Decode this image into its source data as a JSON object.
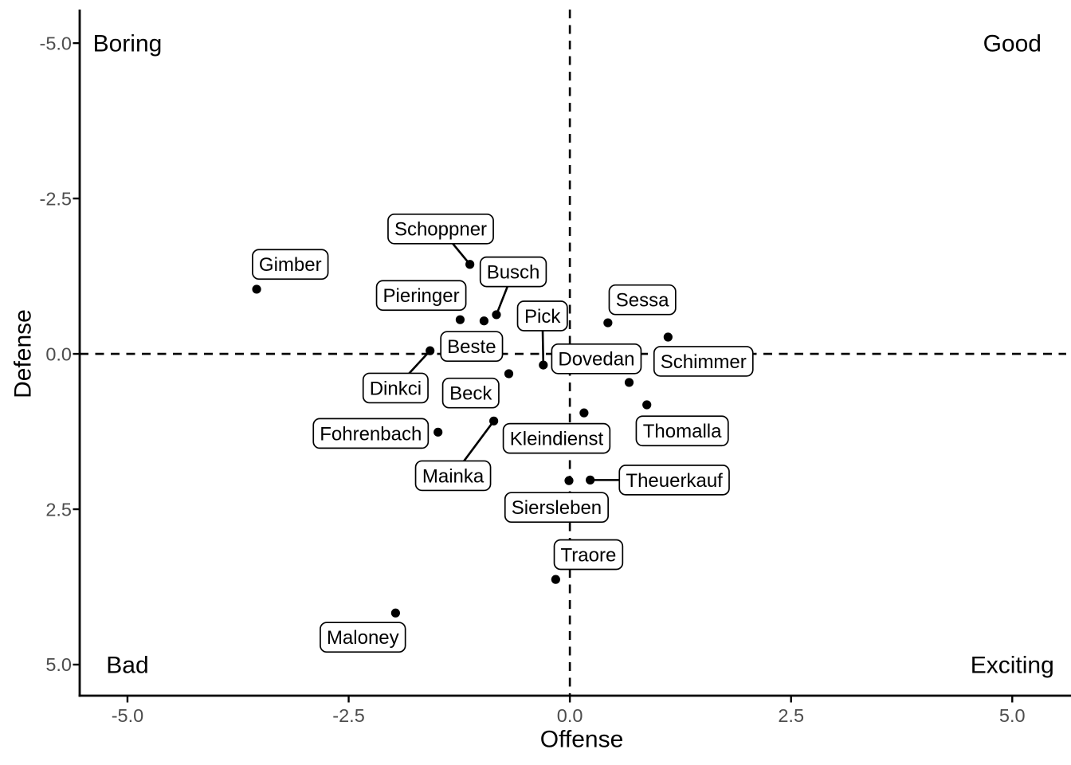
{
  "chart_data": {
    "type": "scatter",
    "title": "",
    "xlabel": "Offense",
    "ylabel": "Defense",
    "xlim": [
      -5.54,
      5.61
    ],
    "ylim_top_to_bottom": [
      -5.54,
      5.5
    ],
    "y_axis_reversed": true,
    "grid": false,
    "x_ticks": [
      -5.0,
      -2.5,
      0.0,
      2.5,
      5.0
    ],
    "y_ticks": [
      -5.0,
      -2.5,
      0.0,
      2.5,
      5.0
    ],
    "x_tick_labels": [
      "-5.0",
      "-2.5",
      "0.0",
      "2.5",
      "5.0"
    ],
    "y_tick_labels": [
      "-5.0",
      "-2.5",
      "0.0",
      "2.5",
      "5.0"
    ],
    "reference_lines": {
      "vline_x": 0,
      "hline_y": 0,
      "style": "dashed"
    },
    "corner_annotations": [
      {
        "text": "Boring",
        "x": -5,
        "y": -5
      },
      {
        "text": "Good",
        "x": 5,
        "y": -5
      },
      {
        "text": "Bad",
        "x": -5,
        "y": 5
      },
      {
        "text": "Exciting",
        "x": 5,
        "y": 5
      }
    ],
    "points": [
      {
        "name": "Gimber",
        "offense": -3.54,
        "defense": -1.04,
        "label_x": -3.16,
        "label_y": -1.44,
        "segment": false
      },
      {
        "name": "Schoppner",
        "offense": -1.13,
        "defense": -1.44,
        "label_x": -1.46,
        "label_y": -2.01,
        "segment": true
      },
      {
        "name": "Busch",
        "offense": -0.83,
        "defense": -0.63,
        "label_x": -0.64,
        "label_y": -1.32,
        "segment": true
      },
      {
        "name": "Pieringer",
        "offense": -1.24,
        "defense": -0.55,
        "label_x": -1.68,
        "label_y": -0.94,
        "segment": false
      },
      {
        "name": "Beste",
        "offense": -0.97,
        "defense": -0.53,
        "label_x": -1.11,
        "label_y": -0.12,
        "segment": false
      },
      {
        "name": "Pick",
        "offense": -0.3,
        "defense": 0.18,
        "label_x": -0.31,
        "label_y": -0.61,
        "segment": true
      },
      {
        "name": "Dinkci",
        "offense": -1.58,
        "defense": -0.05,
        "label_x": -1.97,
        "label_y": 0.55,
        "segment": true
      },
      {
        "name": "Beck",
        "offense": -0.69,
        "defense": 0.32,
        "label_x": -1.12,
        "label_y": 0.63,
        "segment": false
      },
      {
        "name": "Sessa",
        "offense": 0.43,
        "defense": -0.5,
        "label_x": 0.82,
        "label_y": -0.87,
        "segment": false
      },
      {
        "name": "Schimmer",
        "offense": 1.11,
        "defense": -0.27,
        "label_x": 1.51,
        "label_y": 0.12,
        "segment": false
      },
      {
        "name": "Dovedan",
        "offense": 0.67,
        "defense": 0.46,
        "label_x": 0.3,
        "label_y": 0.08,
        "segment": false
      },
      {
        "name": "Thomalla",
        "offense": 0.87,
        "defense": 0.82,
        "label_x": 1.27,
        "label_y": 1.24,
        "segment": false
      },
      {
        "name": "Kleindienst",
        "offense": 0.16,
        "defense": 0.95,
        "label_x": -0.15,
        "label_y": 1.36,
        "segment": false
      },
      {
        "name": "Fohrenbach",
        "offense": -1.49,
        "defense": 1.26,
        "label_x": -2.25,
        "label_y": 1.28,
        "segment": false
      },
      {
        "name": "Mainka",
        "offense": -0.86,
        "defense": 1.08,
        "label_x": -1.32,
        "label_y": 1.96,
        "segment": true
      },
      {
        "name": "Theuerkauf",
        "offense": 0.23,
        "defense": 2.03,
        "label_x": 1.18,
        "label_y": 2.03,
        "segment": true
      },
      {
        "name": "Siersleben",
        "offense": -0.01,
        "defense": 2.04,
        "label_x": -0.15,
        "label_y": 2.47,
        "segment": false
      },
      {
        "name": "Traore",
        "offense": -0.16,
        "defense": 3.63,
        "label_x": 0.21,
        "label_y": 3.23,
        "segment": false
      },
      {
        "name": "Maloney",
        "offense": -1.97,
        "defense": 4.17,
        "label_x": -2.34,
        "label_y": 4.56,
        "segment": false
      }
    ]
  },
  "colors": {
    "background": "#FFFFFF",
    "point": "#000000",
    "label_fill": "#FFFFFF",
    "label_border": "#000000",
    "label_text": "#000000",
    "axis_line": "#000000",
    "tick_label": "#4D4D4D",
    "axis_title": "#000000",
    "annotation_text": "#000000",
    "reference_line": "#000000"
  }
}
